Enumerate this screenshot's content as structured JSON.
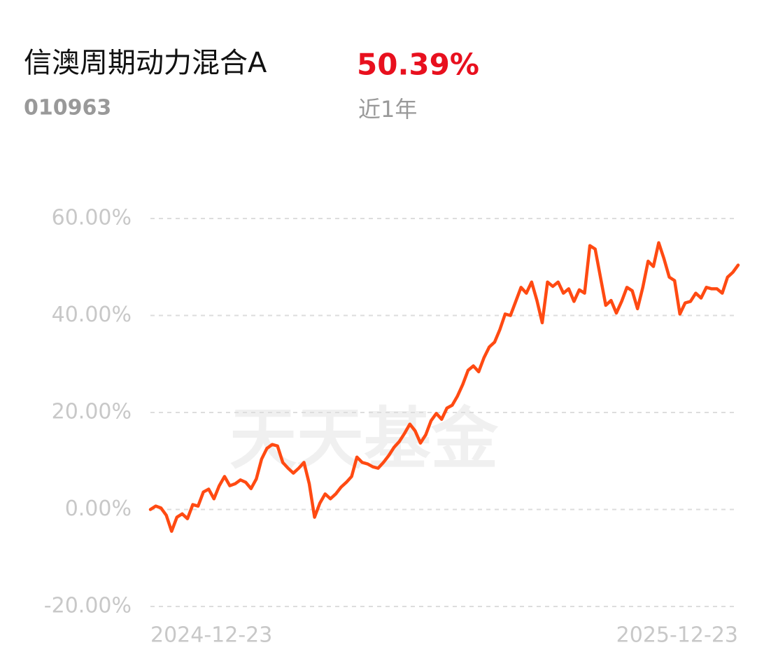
{
  "chart_data": {
    "type": "line",
    "title": "信澳周期动力混合A",
    "code": "010963",
    "return": "50.39%",
    "period": "近1年",
    "watermark": "天天基金",
    "categories": [
      "2024-12-23",
      null,
      null,
      null,
      null,
      null,
      null,
      null,
      null,
      null,
      null,
      null,
      null,
      null,
      null,
      null,
      null,
      null,
      null,
      null,
      null,
      null,
      null,
      null,
      null,
      null,
      null,
      null,
      null,
      null,
      null,
      null,
      null,
      null,
      null,
      null,
      null,
      null,
      null,
      null,
      null,
      null,
      null,
      null,
      null,
      null,
      null,
      null,
      null,
      null,
      null,
      null,
      null,
      null,
      null,
      null,
      null,
      null,
      null,
      null,
      null,
      null,
      null,
      null,
      null,
      null,
      null,
      null,
      null,
      null,
      null,
      null,
      null,
      null,
      null,
      null,
      null,
      null,
      null,
      null,
      null,
      null,
      null,
      null,
      null,
      null,
      null,
      null,
      null,
      null,
      null,
      null,
      null,
      null,
      null,
      null,
      null,
      null,
      null,
      null,
      null,
      null,
      null,
      null,
      null,
      null,
      null,
      null,
      null,
      null,
      null,
      "2025-12-23"
    ],
    "series": [
      {
        "color": "#ff4a12",
        "values": [
          0,
          0.7,
          0.3,
          -1.2,
          -4.5,
          -1.6,
          -0.9,
          -1.9,
          1,
          0.7,
          3.6,
          4.2,
          2.2,
          4.9,
          6.8,
          4.9,
          5.3,
          6.1,
          5.6,
          4.3,
          6.3,
          10.4,
          12.6,
          13.4,
          13.1,
          9.7,
          8.5,
          7.5,
          8.5,
          9.7,
          5.3,
          -1.6,
          1.3,
          3.2,
          2.2,
          3.2,
          4.6,
          5.6,
          6.8,
          10.8,
          9.7,
          9.4,
          8.8,
          8.5,
          9.7,
          11.1,
          12.8,
          14,
          15.7,
          17.6,
          16.2,
          13.7,
          15.4,
          18.3,
          19.8,
          18.6,
          20.9,
          21.5,
          23.4,
          25.8,
          28.7,
          29.6,
          28.4,
          31.3,
          33.5,
          34.5,
          37.1,
          40.3,
          40,
          42.9,
          45.8,
          44.6,
          46.9,
          43.1,
          38.5,
          46.9,
          46,
          46.9,
          44.6,
          45.5,
          42.9,
          45.3,
          44.6,
          54.4,
          53.7,
          47.9,
          42.1,
          43.1,
          40.5,
          42.9,
          45.8,
          45.1,
          41.4,
          45.8,
          51.2,
          50.1,
          55,
          51.7,
          47.9,
          47.2,
          40.3,
          42.6,
          42.9,
          44.6,
          43.6,
          45.8,
          45.5,
          45.5,
          44.6,
          47.9,
          48.9,
          50.39
        ]
      }
    ],
    "ylim": [
      -20,
      60
    ],
    "yticks": [
      {
        "value": -20,
        "label": "-20.00%"
      },
      {
        "value": 0,
        "label": "0.00%"
      },
      {
        "value": 20,
        "label": "20.00%"
      },
      {
        "value": 40,
        "label": "40.00%"
      },
      {
        "value": 60,
        "label": "60.00%"
      }
    ],
    "grid": true
  }
}
